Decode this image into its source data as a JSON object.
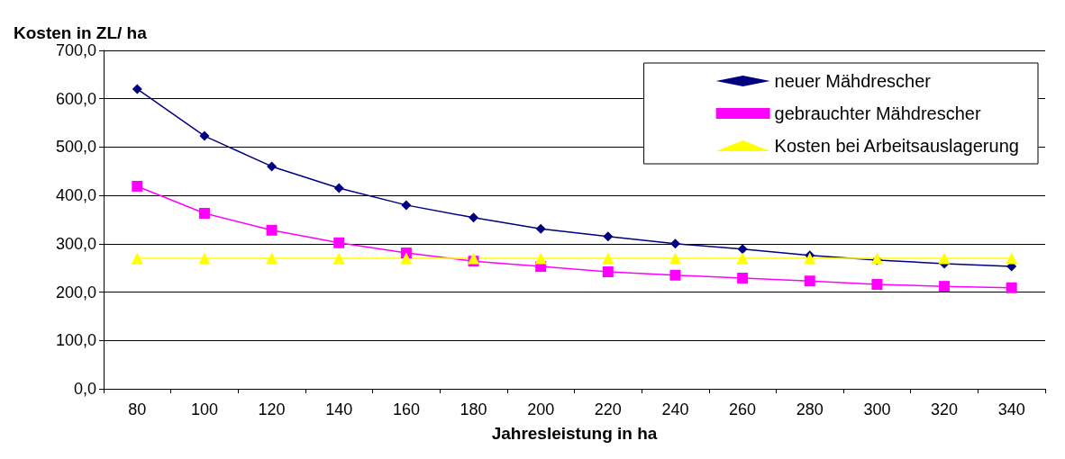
{
  "chart_data": {
    "type": "line",
    "ylabel": "Kosten in ZL/ ha",
    "xlabel": "Jahresleistung in ha",
    "categories": [
      "80",
      "100",
      "120",
      "140",
      "160",
      "180",
      "200",
      "220",
      "240",
      "260",
      "280",
      "300",
      "320",
      "340"
    ],
    "series": [
      {
        "name": "neuer Mähdrescher",
        "color": "#000080",
        "marker": "diamond",
        "values": [
          620,
          523,
          460,
          415,
          380,
          354,
          331,
          315,
          300,
          289,
          276,
          266,
          259,
          253
        ]
      },
      {
        "name": "gebrauchter Mähdrescher",
        "color": "#ff00ff",
        "marker": "square",
        "values": [
          419,
          363,
          328,
          302,
          281,
          264,
          253,
          242,
          235,
          229,
          223,
          216,
          212,
          209
        ]
      },
      {
        "name": "Kosten bei Arbeitsauslagerung",
        "color": "#ffff00",
        "marker": "triangle",
        "values": [
          270,
          270,
          270,
          270,
          270,
          270,
          270,
          270,
          270,
          270,
          270,
          270,
          270,
          270
        ]
      }
    ],
    "ylim": [
      0,
      700
    ],
    "yticks": [
      {
        "value": 0,
        "label": "0,0"
      },
      {
        "value": 100,
        "label": "100,0"
      },
      {
        "value": 200,
        "label": "200,0"
      },
      {
        "value": 300,
        "label": "300,0"
      },
      {
        "value": 400,
        "label": "400,0"
      },
      {
        "value": 500,
        "label": "500,0"
      },
      {
        "value": 600,
        "label": "600,0"
      },
      {
        "value": 700,
        "label": "700,0"
      }
    ],
    "grid": "y",
    "legend": "top right"
  }
}
